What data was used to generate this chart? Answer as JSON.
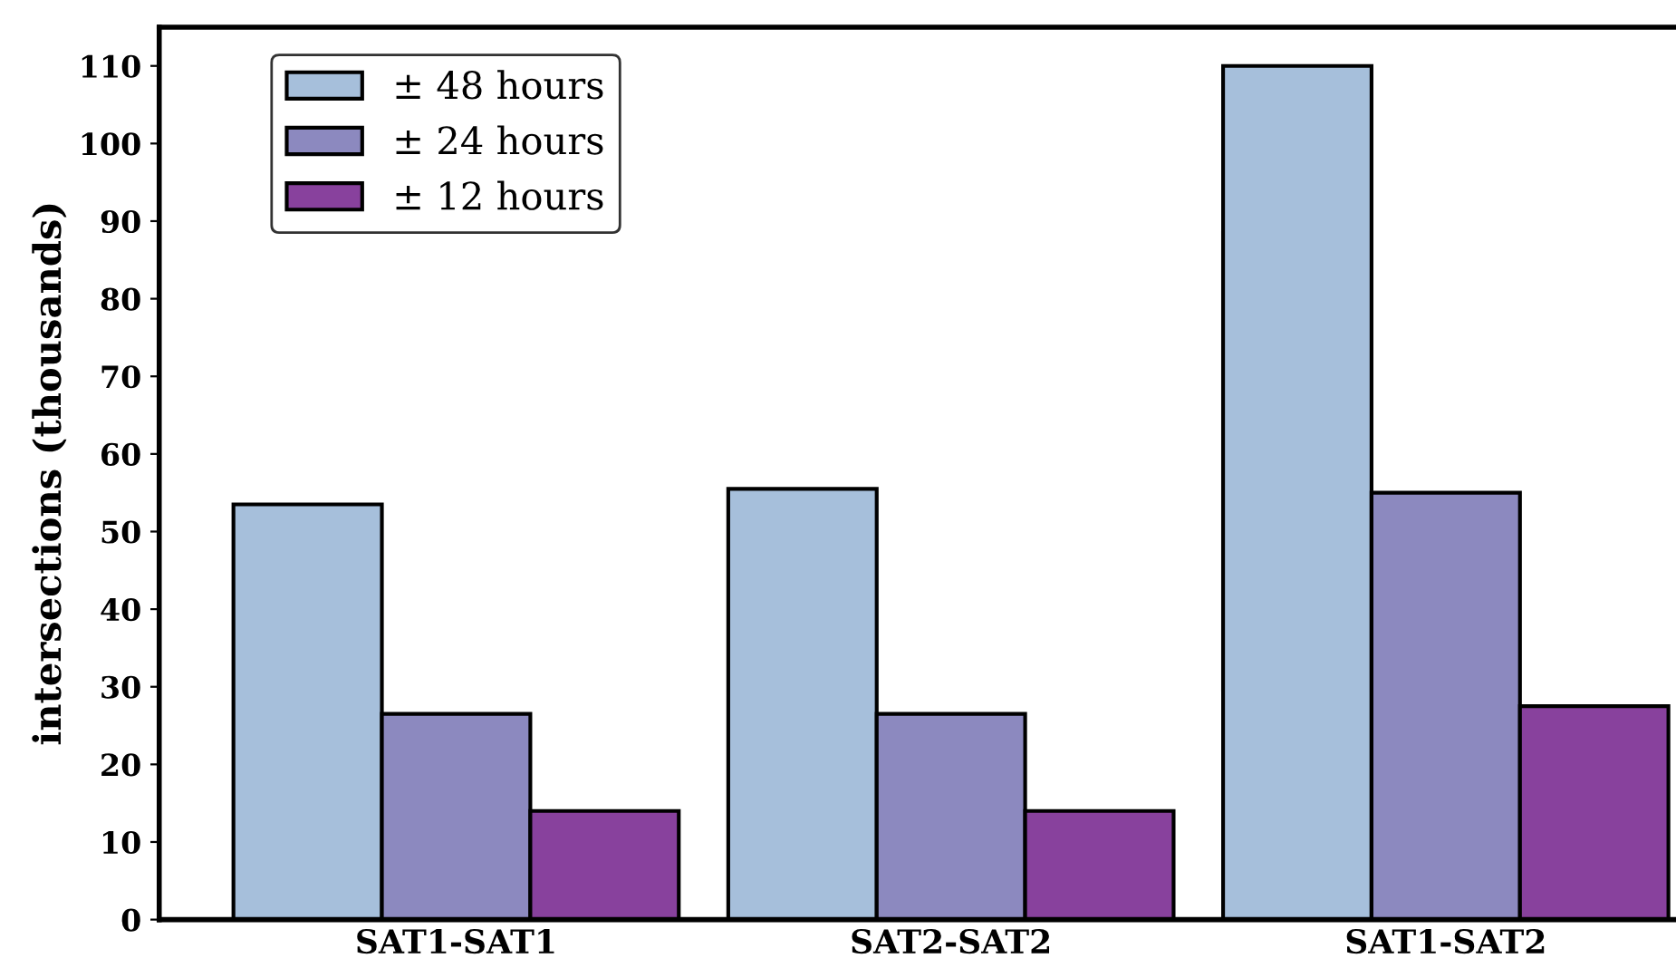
{
  "chart_data": {
    "type": "bar",
    "ylabel": "intersections (thousands)",
    "categories": [
      "SAT1-SAT1",
      "SAT2-SAT2",
      "SAT1-SAT2"
    ],
    "series": [
      {
        "name": "± 48 hours",
        "color": "#a6bfdb",
        "values": [
          53.5,
          55.5,
          110
        ]
      },
      {
        "name": "± 24 hours",
        "color": "#8c89bf",
        "values": [
          26.5,
          26.5,
          55
        ]
      },
      {
        "name": "± 12 hours",
        "color": "#88419d",
        "values": [
          14,
          14,
          27.5
        ]
      }
    ],
    "ylim": [
      0,
      115
    ],
    "yticks": [
      0,
      10,
      20,
      30,
      40,
      50,
      60,
      70,
      80,
      90,
      100,
      110
    ],
    "grid": false,
    "legend": "top left"
  }
}
